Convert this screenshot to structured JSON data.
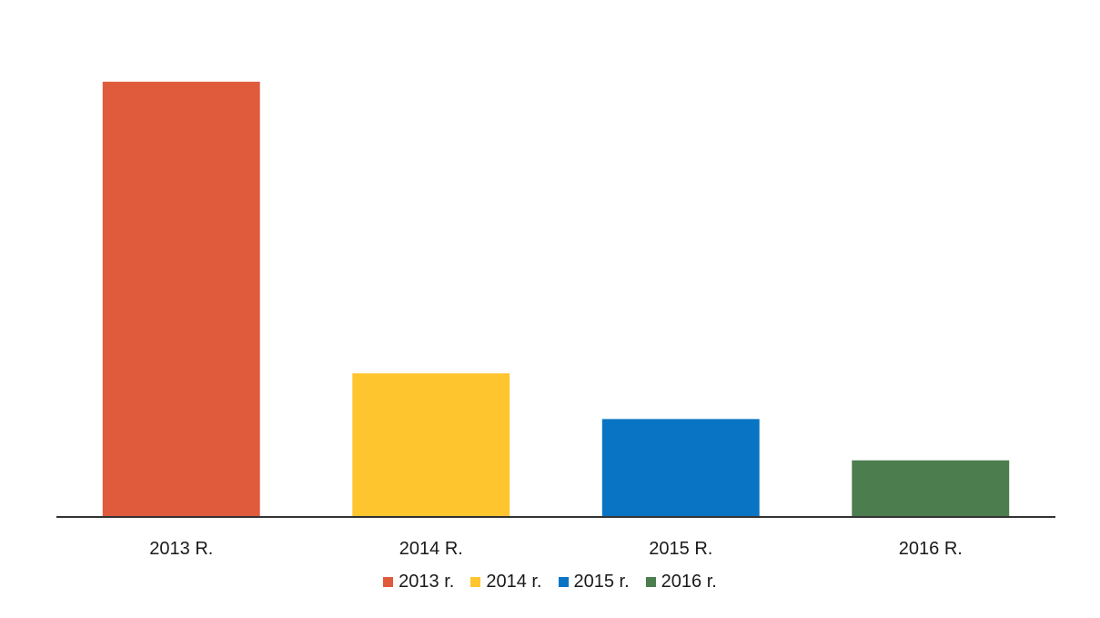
{
  "chart_data": {
    "type": "bar",
    "categories": [
      "2013 R.",
      "2014 R.",
      "2015 R.",
      "2016 R."
    ],
    "values": [
      100,
      33,
      22.5,
      13
    ],
    "ylim": [
      0,
      110
    ],
    "grid": false,
    "legend_position": "bottom",
    "legend": [
      "2013 r.",
      "2014 r.",
      "2015 r.",
      "2016 r."
    ],
    "colors": [
      "#e05a3c",
      "#fec52e",
      "#0a74c4",
      "#4c7d4f"
    ],
    "axis_color": "#333333"
  }
}
